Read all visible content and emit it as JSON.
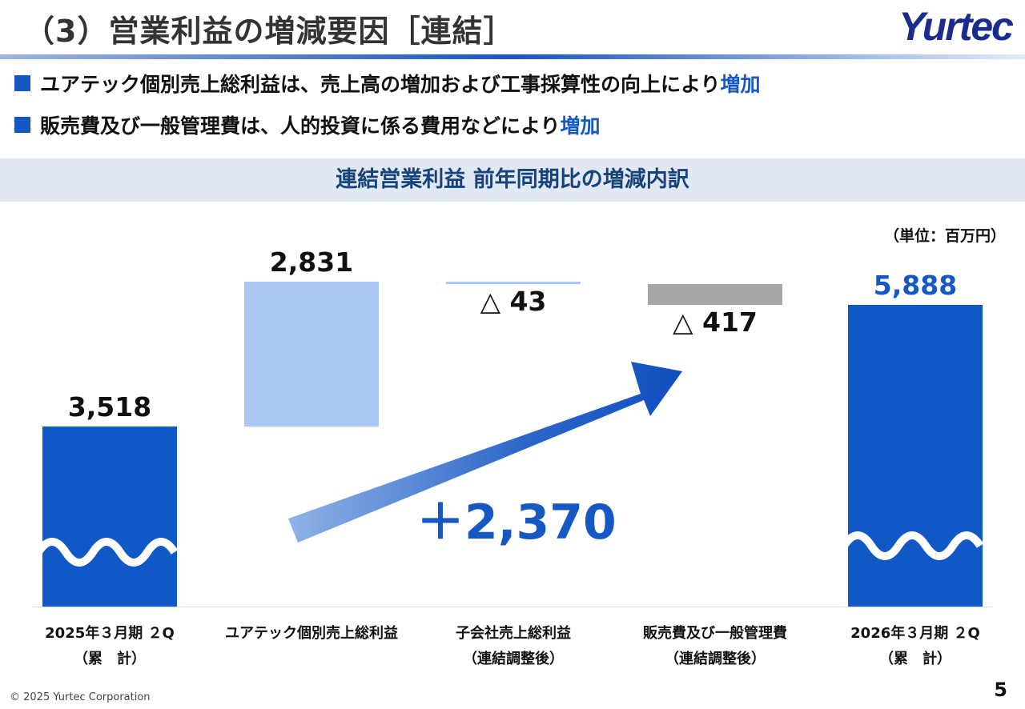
{
  "header": {
    "title": "（3）営業利益の増減要因［連結］",
    "logo": "Yurtec"
  },
  "bullets": [
    {
      "text": "ユアテック個別売上総利益は、売上高の増加および工事採算性の向上により",
      "highlight": "増加"
    },
    {
      "text": "販売費及び一般管理費は、人的投資に係る費用などにより",
      "highlight": "増加"
    }
  ],
  "chart_data": {
    "type": "waterfall",
    "title": "連結営業利益 前年同期比の増減内訳",
    "unit": "（単位：百万円）",
    "categories": [
      {
        "line1": "2025年３月期 ２Q",
        "line2": "（累　計）"
      },
      {
        "line1": "ユアテック個別売上総利益",
        "line2": ""
      },
      {
        "line1": "子会社売上総利益",
        "line2": "（連結調整後）"
      },
      {
        "line1": "販売費及び一般管理費",
        "line2": "（連結調整後）"
      },
      {
        "line1": "2026年３月期 ２Q",
        "line2": "（累　計）"
      }
    ],
    "values": [
      3518,
      2831,
      -43,
      -417,
      5888
    ],
    "labels": [
      "3,518",
      "2,831",
      "△ 43",
      "△ 417",
      "5,888"
    ],
    "kinds": [
      "total",
      "delta",
      "delta",
      "delta",
      "total"
    ],
    "colors": [
      "#1158c7",
      "#a9c8f5",
      "#a9c8f5",
      "#a6a6a6",
      "#1158c7"
    ],
    "total_change_label": "＋2,370",
    "axis_broken": true
  },
  "footer": {
    "copyright": "© 2025 Yurtec Corporation",
    "page": "5"
  }
}
